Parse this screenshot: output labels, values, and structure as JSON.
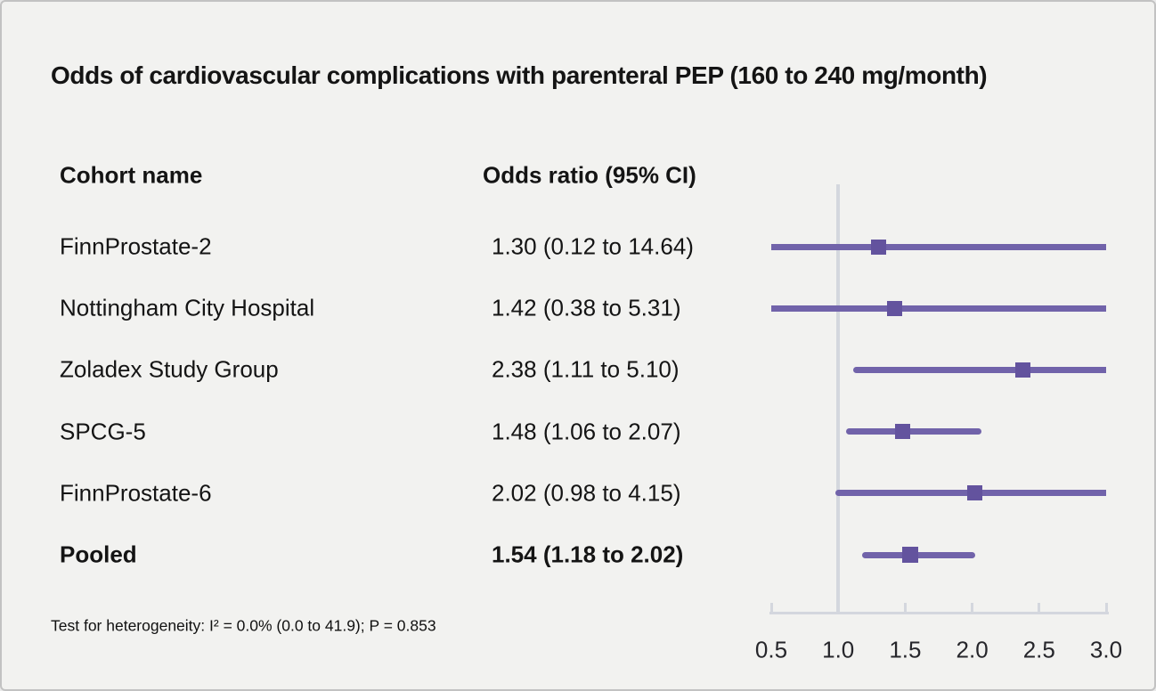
{
  "page": {
    "title": "Odds of cardiovascular complications with parenteral PEP (160 to 240 mg/month)",
    "footnote": "Test for heterogeneity: I² = 0.0% (0.0 to 41.9); P = 0.853"
  },
  "table": {
    "headers": {
      "cohort": "Cohort name",
      "odds_ratio": "Odds ratio (95% CI)"
    }
  },
  "chart_data": {
    "type": "forest",
    "title": "Odds of cardiovascular complications with parenteral PEP (160 to 240 mg/month)",
    "xlim": [
      0.5,
      3.0
    ],
    "reference_line": 1.0,
    "x_ticks": [
      0.5,
      1.0,
      1.5,
      2.0,
      2.5,
      3.0
    ],
    "x_tick_labels": [
      "0.5",
      "1.0",
      "1.5",
      "2.0",
      "2.5",
      "3.0"
    ],
    "rows": [
      {
        "cohort": "FinnProstate-2",
        "or": 1.3,
        "ci_low": 0.12,
        "ci_high": 14.64,
        "label": "1.30 (0.12 to 14.64)",
        "pooled": false
      },
      {
        "cohort": "Nottingham City Hospital",
        "or": 1.42,
        "ci_low": 0.38,
        "ci_high": 5.31,
        "label": "1.42 (0.38 to 5.31)",
        "pooled": false
      },
      {
        "cohort": "Zoladex Study Group",
        "or": 2.38,
        "ci_low": 1.11,
        "ci_high": 5.1,
        "label": "2.38 (1.11 to 5.10)",
        "pooled": false
      },
      {
        "cohort": "SPCG-5",
        "or": 1.48,
        "ci_low": 1.06,
        "ci_high": 2.07,
        "label": "1.48 (1.06 to 2.07)",
        "pooled": false
      },
      {
        "cohort": "FinnProstate-6",
        "or": 2.02,
        "ci_low": 0.98,
        "ci_high": 4.15,
        "label": "2.02 (0.98 to 4.15)",
        "pooled": false
      },
      {
        "cohort": "Pooled",
        "or": 1.54,
        "ci_low": 1.18,
        "ci_high": 2.02,
        "label": "1.54 (1.18 to 2.02)",
        "pooled": true
      }
    ],
    "footnote": "Test for heterogeneity: I² = 0.0% (0.0 to 41.9); P = 0.853",
    "heterogeneity": {
      "i_squared_pct": 0.0,
      "i_squared_ci": [
        0.0,
        41.9
      ],
      "p_value": 0.853
    },
    "legend": "none",
    "grid": false,
    "colors": {
      "ci_line": "#7163aa",
      "marker": "#63539e",
      "reference_line": "#d4d7de",
      "axis": "#d4d7de",
      "background": "#f2f2f0",
      "text": "#141414"
    }
  }
}
